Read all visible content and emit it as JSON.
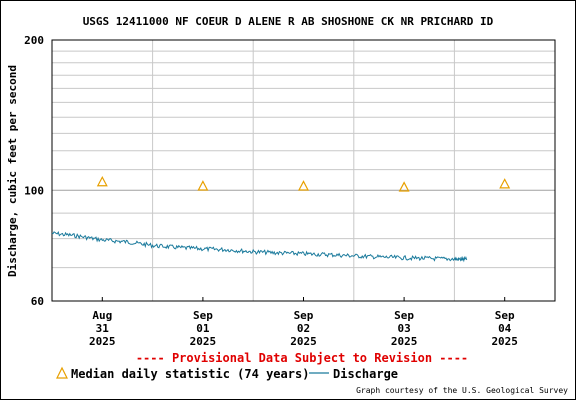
{
  "chart_data": {
    "type": "line",
    "title": "USGS 12411000 NF COEUR D ALENE R AB SHOSHONE CK NR PRICHARD ID",
    "ylabel": "Discharge, cubic feet per second",
    "xlabel": "",
    "y_scale": "log",
    "ylim": [
      60,
      200
    ],
    "y_ticks": [
      {
        "value": 60,
        "label": "60"
      },
      {
        "value": 100,
        "label": "100"
      },
      {
        "value": 200,
        "label": "200"
      }
    ],
    "y_minor_gridlines": [
      70,
      80,
      90,
      110,
      120,
      130,
      140,
      150,
      160,
      170,
      180,
      190
    ],
    "xlim": [
      "2025-08-31T00:00",
      "2025-09-05T00:00"
    ],
    "x_ticks": [
      {
        "month": "Aug",
        "day": "31",
        "year": "2025",
        "date": "2025-08-31T12:00"
      },
      {
        "month": "Sep",
        "day": "01",
        "year": "2025",
        "date": "2025-09-01T12:00"
      },
      {
        "month": "Sep",
        "day": "02",
        "year": "2025",
        "date": "2025-09-02T12:00"
      },
      {
        "month": "Sep",
        "day": "03",
        "year": "2025",
        "date": "2025-09-03T12:00"
      },
      {
        "month": "Sep",
        "day": "04",
        "year": "2025",
        "date": "2025-09-04T12:00"
      }
    ],
    "x_gridlines": [
      "2025-09-01T00:00",
      "2025-09-02T00:00",
      "2025-09-03T00:00",
      "2025-09-04T00:00"
    ],
    "grid": true,
    "series": [
      {
        "name": "Median daily statistic (74 years)",
        "kind": "marker",
        "marker": "triangle",
        "color": "#e8a000",
        "points": [
          {
            "x": "2025-08-31T12:00",
            "y": 104
          },
          {
            "x": "2025-09-01T12:00",
            "y": 102
          },
          {
            "x": "2025-09-02T12:00",
            "y": 102
          },
          {
            "x": "2025-09-03T12:00",
            "y": 101.5
          },
          {
            "x": "2025-09-04T12:00",
            "y": 103
          }
        ]
      },
      {
        "name": "Discharge",
        "kind": "line",
        "color": "#1a7a9c",
        "points": [
          {
            "x": "2025-08-31T00:00",
            "y": 82
          },
          {
            "x": "2025-08-31T06:00",
            "y": 81
          },
          {
            "x": "2025-08-31T12:00",
            "y": 79.5
          },
          {
            "x": "2025-08-31T18:00",
            "y": 78.8
          },
          {
            "x": "2025-09-01T00:00",
            "y": 77.5
          },
          {
            "x": "2025-09-01T06:00",
            "y": 76.8
          },
          {
            "x": "2025-09-01T12:00",
            "y": 76.3
          },
          {
            "x": "2025-09-01T18:00",
            "y": 76.0
          },
          {
            "x": "2025-09-02T00:00",
            "y": 75.3
          },
          {
            "x": "2025-09-02T06:00",
            "y": 74.9
          },
          {
            "x": "2025-09-02T12:00",
            "y": 74.6
          },
          {
            "x": "2025-09-02T18:00",
            "y": 74.3
          },
          {
            "x": "2025-09-03T00:00",
            "y": 73.9
          },
          {
            "x": "2025-09-03T06:00",
            "y": 73.5
          },
          {
            "x": "2025-09-03T12:00",
            "y": 73.2
          },
          {
            "x": "2025-09-03T18:00",
            "y": 73.0
          },
          {
            "x": "2025-09-04T00:00",
            "y": 72.8
          },
          {
            "x": "2025-09-04T03:00",
            "y": 72.6
          }
        ]
      }
    ],
    "legend_placement": "bottom-left",
    "provisional_note": "---- Provisional Data Subject to Revision ----",
    "credit": "Graph courtesy of the U.S. Geological Survey"
  }
}
